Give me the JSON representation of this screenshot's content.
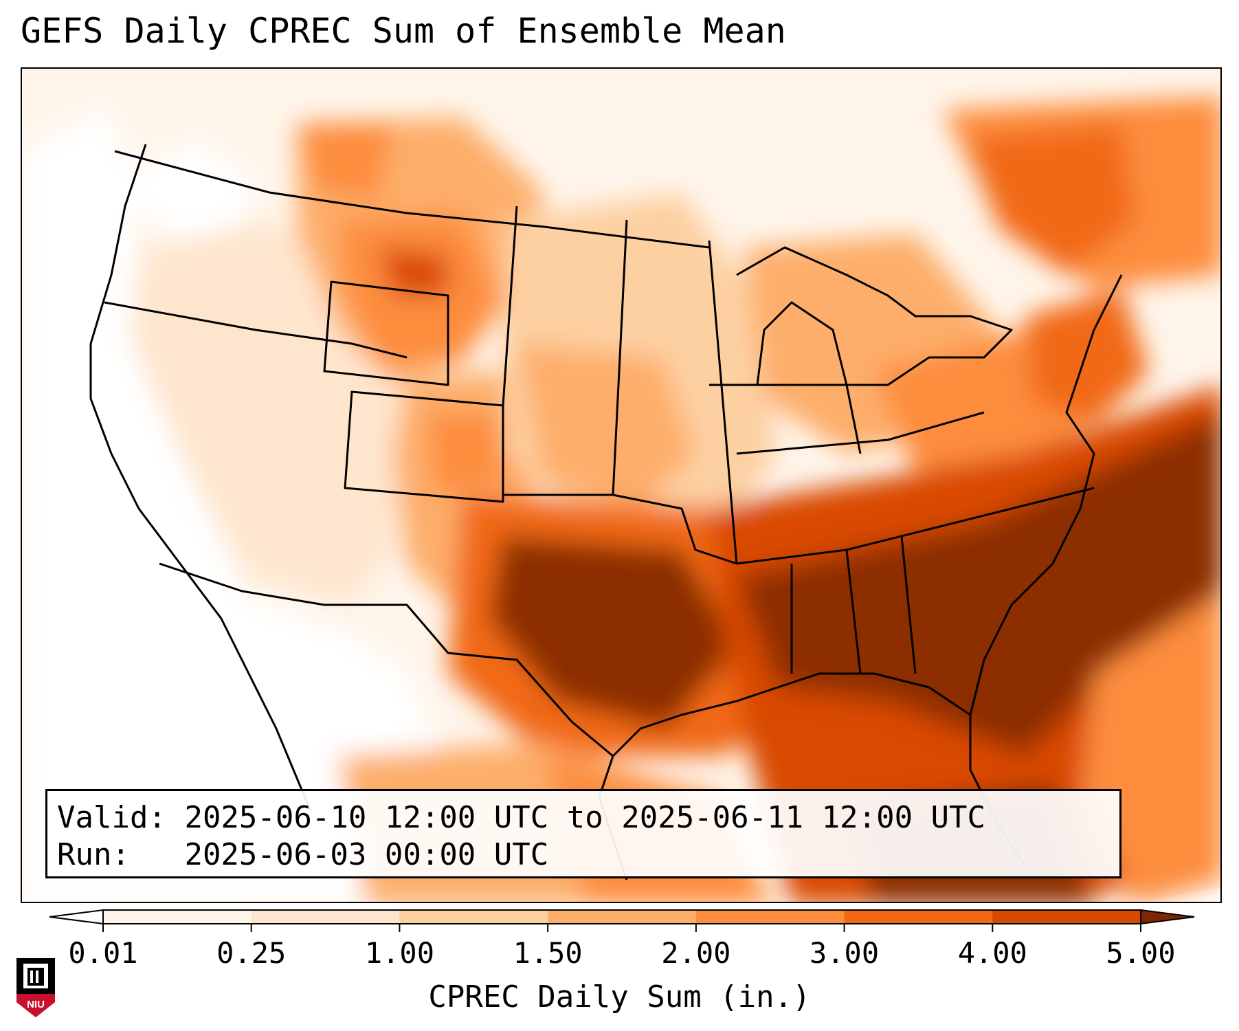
{
  "title": "GEFS Daily CPREC Sum of Ensemble Mean",
  "info": {
    "valid_label": "Valid:",
    "valid_value": "2025-06-10 12:00 UTC to 2025-06-11 12:00 UTC",
    "run_label": "Run:",
    "run_value": "2025-06-03 00:00 UTC"
  },
  "colorbar": {
    "label": "CPREC Daily Sum (in.)",
    "ticks": [
      "0.01",
      "0.25",
      "1.00",
      "1.50",
      "2.00",
      "3.00",
      "4.00",
      "5.00"
    ],
    "colors": [
      "#fff5eb",
      "#fee6ce",
      "#fdd0a2",
      "#fdae6b",
      "#fd8d3c",
      "#f16913",
      "#d94801",
      "#8c2d04"
    ],
    "under_color": "#ffffff",
    "over_color": "#7f2704",
    "extend": "both"
  },
  "map": {
    "region": "Contiguous United States",
    "projection": "Lambert Conformal",
    "fill_colors": {
      "none": "#ffffff",
      "trace": "#fff5eb",
      "light": "#fee6ce",
      "low": "#fdd0a2",
      "moderate": "#fdae6b",
      "high": "#fd8d3c",
      "very_high": "#f16913",
      "heavy": "#d94801",
      "extreme": "#8c2d04"
    }
  },
  "logo": {
    "text": "NIU",
    "colors": {
      "red": "#c8102e",
      "black": "#000000"
    }
  }
}
